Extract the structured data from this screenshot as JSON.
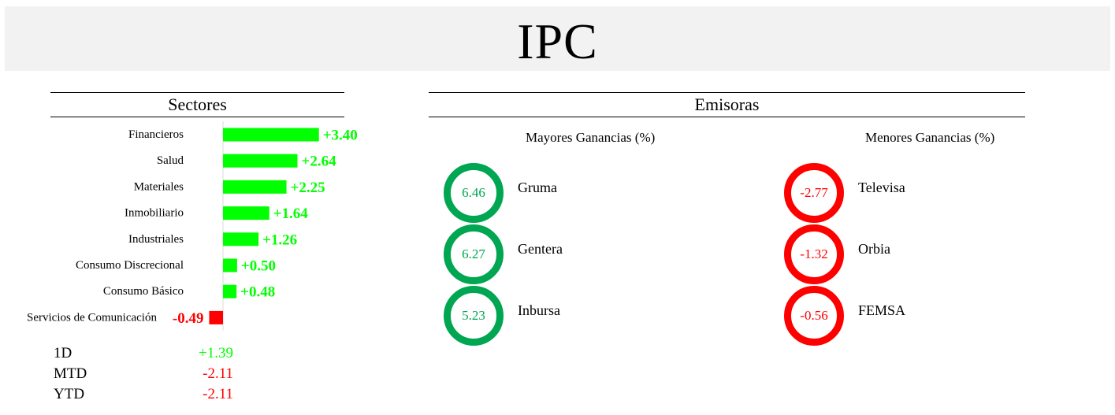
{
  "page": {
    "title": "IPC"
  },
  "sections": {
    "sectores": "Sectores",
    "emisoras": "Emisoras"
  },
  "colors": {
    "positive": "#00ff00",
    "negative": "#ff0000",
    "ring_gain": "#00a651",
    "ring_loss": "#ff0000",
    "title_bg": "#f2f2f2"
  },
  "chart_data": {
    "type": "bar",
    "orientation": "horizontal",
    "categories": [
      "Financieros",
      "Salud",
      "Materiales",
      "Inmobiliario",
      "Industriales",
      "Consumo Discrecional",
      "Consumo Básico",
      "Servicios de Comunicación"
    ],
    "values": [
      3.4,
      2.64,
      2.25,
      1.64,
      1.26,
      0.5,
      0.48,
      -0.49
    ],
    "value_labels": [
      "+3.40",
      "+2.64",
      "+2.25",
      "+1.64",
      "+1.26",
      "+0.50",
      "+0.48",
      "-0.49"
    ],
    "xlim": [
      -0.65,
      4.2
    ],
    "grid": false
  },
  "performance": [
    {
      "label": "1D",
      "value": "+1.39",
      "color": "#00ff00"
    },
    {
      "label": "MTD",
      "value": "-2.11",
      "color": "#ff0000"
    },
    {
      "label": "YTD",
      "value": "-2.11",
      "color": "#ff0000"
    }
  ],
  "emisoras": {
    "mayores_title": "Mayores Ganancias (%)",
    "menores_title": "Menores Ganancias (%)",
    "mayores": [
      {
        "value": "6.46",
        "name": "Gruma"
      },
      {
        "value": "6.27",
        "name": "Gentera"
      },
      {
        "value": "5.23",
        "name": "Inbursa"
      }
    ],
    "menores": [
      {
        "value": "-2.77",
        "name": "Televisa"
      },
      {
        "value": "-1.32",
        "name": "Orbia"
      },
      {
        "value": "-0.56",
        "name": "FEMSA"
      }
    ]
  }
}
